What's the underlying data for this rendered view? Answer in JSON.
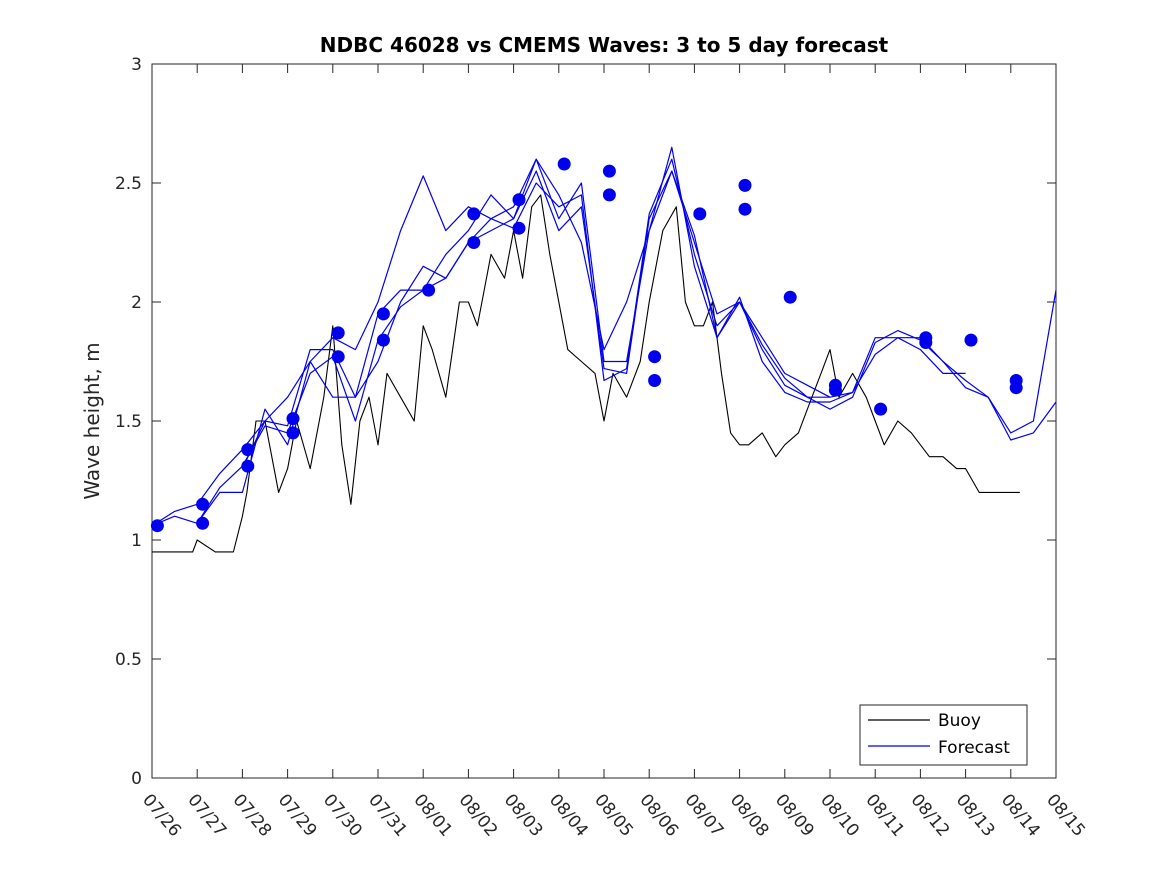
{
  "chart_data": {
    "type": "line",
    "title": "NDBC 46028 vs CMEMS Waves: 3 to 5 day forecast",
    "xlabel": "",
    "ylabel": "Wave height, m",
    "xlim": [
      "07/26",
      "08/15"
    ],
    "ylim": [
      0,
      3
    ],
    "x_ticks": [
      "07/26",
      "07/27",
      "07/28",
      "07/29",
      "07/30",
      "07/31",
      "08/01",
      "08/02",
      "08/03",
      "08/04",
      "08/05",
      "08/06",
      "08/07",
      "08/08",
      "08/09",
      "08/10",
      "08/11",
      "08/12",
      "08/13",
      "08/14",
      "08/15"
    ],
    "y_ticks": [
      "0",
      "0.5",
      "1",
      "1.5",
      "2",
      "2.5",
      "3"
    ],
    "grid": false,
    "legend_position": "bottom-right",
    "colors": {
      "buoy": "#000000",
      "forecast": "#0000ee",
      "axis": "#262626"
    },
    "legend": [
      {
        "label": "Buoy",
        "color": "#000000"
      },
      {
        "label": "Forecast",
        "color": "#0000ee"
      }
    ],
    "series": [
      {
        "name": "Buoy",
        "color": "#000000",
        "x": [
          0,
          0.5,
          0.9,
          1.0,
          1.4,
          1.8,
          2.0,
          2.1,
          2.3,
          2.5,
          2.8,
          3.0,
          3.2,
          3.5,
          3.8,
          4.0,
          4.2,
          4.4,
          4.6,
          4.8,
          5.0,
          5.2,
          5.5,
          5.8,
          6.0,
          6.2,
          6.5,
          6.8,
          7.0,
          7.2,
          7.5,
          7.8,
          8.0,
          8.2,
          8.4,
          8.6,
          8.8,
          9.0,
          9.2,
          9.5,
          9.8,
          10.0,
          10.2,
          10.5,
          10.8,
          11.0,
          11.3,
          11.6,
          11.8,
          12.0,
          12.2,
          12.4,
          12.6,
          12.8,
          13.0,
          13.2,
          13.5,
          13.8,
          14.0,
          14.3,
          14.6,
          14.8,
          15.0,
          15.2,
          15.5,
          15.8,
          16.0,
          16.2,
          16.5,
          16.8,
          17.0,
          17.2,
          17.5,
          17.8,
          18.0,
          18.3,
          18.6,
          18.8,
          19.0,
          19.2
        ],
        "values": [
          0.95,
          0.95,
          0.95,
          1.0,
          0.95,
          0.95,
          1.1,
          1.2,
          1.5,
          1.5,
          1.2,
          1.3,
          1.5,
          1.3,
          1.6,
          1.9,
          1.4,
          1.15,
          1.5,
          1.6,
          1.4,
          1.7,
          1.6,
          1.5,
          1.9,
          1.8,
          1.6,
          2.0,
          2.0,
          1.9,
          2.2,
          2.1,
          2.3,
          2.1,
          2.4,
          2.45,
          2.2,
          2.0,
          1.8,
          1.75,
          1.7,
          1.5,
          1.7,
          1.6,
          1.75,
          2.0,
          2.3,
          2.4,
          2.0,
          1.9,
          1.9,
          2.0,
          1.7,
          1.45,
          1.4,
          1.4,
          1.45,
          1.35,
          1.4,
          1.45,
          1.6,
          1.7,
          1.8,
          1.6,
          1.7,
          1.6,
          1.5,
          1.4,
          1.5,
          1.45,
          1.4,
          1.35,
          1.35,
          1.3,
          1.3,
          1.2,
          1.2,
          1.2,
          1.2,
          1.2
        ]
      },
      {
        "name": "Forecast",
        "color": "#0000ee",
        "x": [
          0,
          0.5,
          1.0,
          1.5,
          2.0,
          2.5,
          3.0,
          3.5,
          4.0,
          4.5,
          5.0,
          5.5,
          6.0,
          6.5,
          7.0,
          7.5,
          8.0,
          8.5,
          9.0,
          9.5,
          10.0,
          10.5,
          11.0,
          11.5,
          12.0,
          12.5,
          13.0,
          13.5,
          14.0,
          14.5,
          15.0,
          15.5,
          16.0,
          16.5,
          17.0,
          17.5,
          18.0,
          18.5,
          19.0,
          19.5,
          20.0
        ],
        "values": [
          1.06,
          1.12,
          1.15,
          1.28,
          1.38,
          1.5,
          1.48,
          1.8,
          1.8,
          1.6,
          1.95,
          2.05,
          2.05,
          2.2,
          2.3,
          2.45,
          2.35,
          2.6,
          2.35,
          2.5,
          1.75,
          1.75,
          2.3,
          2.65,
          2.15,
          1.85,
          2.02,
          1.75,
          1.62,
          1.58,
          1.58,
          1.62,
          1.85,
          1.85,
          1.85,
          1.75,
          1.67,
          1.6,
          1.45,
          1.5,
          2.05
        ]
      },
      {
        "name": "",
        "color": "#0000ee",
        "x": [
          0,
          0.5,
          1.0,
          1.5,
          2.0,
          2.5,
          3.0,
          3.5,
          4.0,
          4.5,
          5.0,
          5.5,
          6.0,
          6.5,
          7.0,
          7.5,
          8.0,
          8.5,
          9.0,
          9.5,
          10.0,
          10.5,
          11.0,
          11.5,
          12.0,
          12.5,
          13.0,
          13.5,
          14.0,
          14.5,
          15.0,
          15.5,
          16.0,
          16.5,
          17.0,
          17.5,
          18.0,
          18.5,
          19.0,
          19.5,
          20.0
        ],
        "values": [
          1.06,
          1.1,
          1.07,
          1.22,
          1.31,
          1.48,
          1.45,
          1.7,
          1.77,
          1.5,
          1.84,
          1.98,
          2.05,
          2.1,
          2.25,
          2.35,
          2.31,
          2.5,
          2.4,
          2.45,
          1.67,
          1.72,
          2.37,
          2.6,
          2.2,
          1.9,
          2.0,
          1.8,
          1.65,
          1.6,
          1.55,
          1.6,
          1.83,
          1.88,
          1.84,
          1.75,
          1.64,
          1.6,
          1.42,
          1.45,
          1.58
        ]
      },
      {
        "name": "",
        "color": "#0000ee",
        "x": [
          1.0,
          1.5,
          2.0,
          2.5,
          3.0,
          3.5,
          4.0,
          4.5,
          5.0,
          5.5,
          6.0,
          6.5,
          7.0,
          7.5,
          8.0,
          8.5,
          9.0,
          9.5,
          10.0,
          10.5,
          11.0,
          11.5,
          12.0,
          12.5,
          13.0,
          13.5,
          14.0,
          14.5,
          15.0,
          15.5,
          16.0,
          16.5,
          17.0,
          17.5,
          18.0
        ],
        "values": [
          1.07,
          1.2,
          1.2,
          1.55,
          1.4,
          1.75,
          1.6,
          1.6,
          1.75,
          2.0,
          2.15,
          2.1,
          2.25,
          2.3,
          2.35,
          2.55,
          2.3,
          2.4,
          1.72,
          1.7,
          2.35,
          2.55,
          2.25,
          1.95,
          2.0,
          1.82,
          1.68,
          1.6,
          1.6,
          1.62,
          1.78,
          1.85,
          1.8,
          1.7,
          1.7
        ]
      },
      {
        "name": "",
        "color": "#0000ee",
        "x": [
          2.0,
          2.5,
          3.0,
          3.5,
          4.0,
          4.5,
          5.0,
          5.5,
          6.0,
          6.5,
          7.0,
          7.5,
          8.0,
          8.5,
          9.0,
          9.5,
          10.0,
          10.5,
          11.0,
          11.5,
          12.0,
          12.5,
          13.0,
          13.5,
          14.0,
          14.5,
          15.0
        ],
        "values": [
          1.3,
          1.5,
          1.6,
          1.75,
          1.85,
          1.8,
          2.0,
          2.3,
          2.53,
          2.3,
          2.4,
          2.35,
          2.4,
          2.6,
          2.45,
          2.25,
          1.8,
          2.0,
          2.3,
          2.55,
          2.28,
          1.85,
          2.0,
          1.85,
          1.7,
          1.65,
          1.6
        ]
      }
    ],
    "markers": {
      "color": "#0000ee",
      "x": [
        0.12,
        1.12,
        1.12,
        2.12,
        2.12,
        3.12,
        3.12,
        4.12,
        4.12,
        5.12,
        5.12,
        6.12,
        7.12,
        7.12,
        8.12,
        8.12,
        9.12,
        10.12,
        10.12,
        11.12,
        11.12,
        12.12,
        13.12,
        13.12,
        14.12,
        15.12,
        15.12,
        16.12,
        17.12,
        17.12,
        18.12,
        19.12,
        19.12
      ],
      "values": [
        1.06,
        1.15,
        1.07,
        1.38,
        1.31,
        1.51,
        1.45,
        1.87,
        1.77,
        1.95,
        1.84,
        2.05,
        2.37,
        2.25,
        2.43,
        2.31,
        2.58,
        2.55,
        2.45,
        1.77,
        1.67,
        2.37,
        2.49,
        2.39,
        2.02,
        1.65,
        1.63,
        1.55,
        1.85,
        1.83,
        1.84,
        1.67,
        1.64
      ]
    }
  }
}
